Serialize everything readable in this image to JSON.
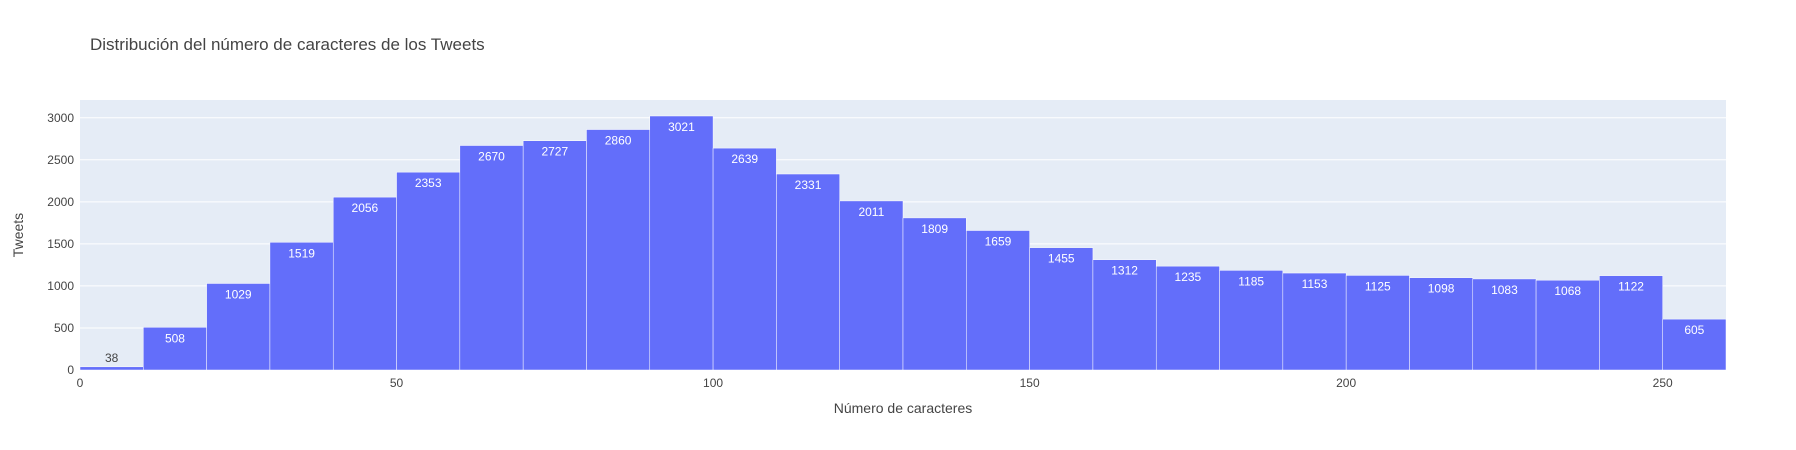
{
  "chart_data": {
    "type": "bar",
    "title": "Distribución del número de caracteres de los Tweets",
    "xlabel": "Número de caracteres",
    "ylabel": "Tweets",
    "bins": [
      {
        "x0": 0,
        "x1": 10,
        "value": 38
      },
      {
        "x0": 10,
        "x1": 20,
        "value": 508
      },
      {
        "x0": 20,
        "x1": 30,
        "value": 1029
      },
      {
        "x0": 30,
        "x1": 40,
        "value": 1519
      },
      {
        "x0": 40,
        "x1": 50,
        "value": 2056
      },
      {
        "x0": 50,
        "x1": 60,
        "value": 2353
      },
      {
        "x0": 60,
        "x1": 70,
        "value": 2670
      },
      {
        "x0": 70,
        "x1": 80,
        "value": 2727
      },
      {
        "x0": 80,
        "x1": 90,
        "value": 2860
      },
      {
        "x0": 90,
        "x1": 100,
        "value": 3021
      },
      {
        "x0": 100,
        "x1": 110,
        "value": 2639
      },
      {
        "x0": 110,
        "x1": 120,
        "value": 2331
      },
      {
        "x0": 120,
        "x1": 130,
        "value": 2011
      },
      {
        "x0": 130,
        "x1": 140,
        "value": 1809
      },
      {
        "x0": 140,
        "x1": 150,
        "value": 1659
      },
      {
        "x0": 150,
        "x1": 160,
        "value": 1455
      },
      {
        "x0": 160,
        "x1": 170,
        "value": 1312
      },
      {
        "x0": 170,
        "x1": 180,
        "value": 1235
      },
      {
        "x0": 180,
        "x1": 190,
        "value": 1185
      },
      {
        "x0": 190,
        "x1": 200,
        "value": 1153
      },
      {
        "x0": 200,
        "x1": 210,
        "value": 1125
      },
      {
        "x0": 210,
        "x1": 220,
        "value": 1098
      },
      {
        "x0": 220,
        "x1": 230,
        "value": 1083
      },
      {
        "x0": 230,
        "x1": 240,
        "value": 1068
      },
      {
        "x0": 240,
        "x1": 250,
        "value": 1122
      },
      {
        "x0": 250,
        "x1": 260,
        "value": 605
      }
    ],
    "xlim": [
      0,
      260
    ],
    "ylim": [
      0,
      3021
    ],
    "x_ticks": [
      0,
      50,
      100,
      150,
      200,
      250
    ],
    "y_ticks": [
      0,
      500,
      1000,
      1500,
      2000,
      2500,
      3000
    ],
    "grid": true,
    "bar_color": "#636efa",
    "plot_bg": "#e5ecf6",
    "label_inside_color": "#ffffff",
    "label_outside_color": "#444444"
  }
}
